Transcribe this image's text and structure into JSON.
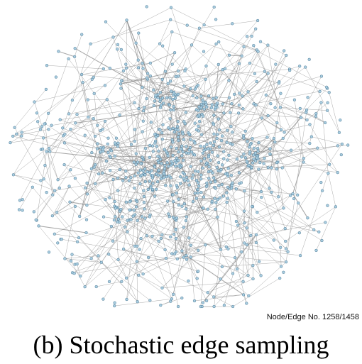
{
  "figure": {
    "stats_label": "Node/Edge No. 1258/1458",
    "caption": "(b) Stochastic edge sampling"
  },
  "graph": {
    "node_count": 1258,
    "edge_count": 1458,
    "node_fill": "#a9cde0",
    "node_stroke": "#3f6f8c",
    "edge_color": "#8c8c8c",
    "layout": "force-directed, dense core with sparse periphery"
  }
}
